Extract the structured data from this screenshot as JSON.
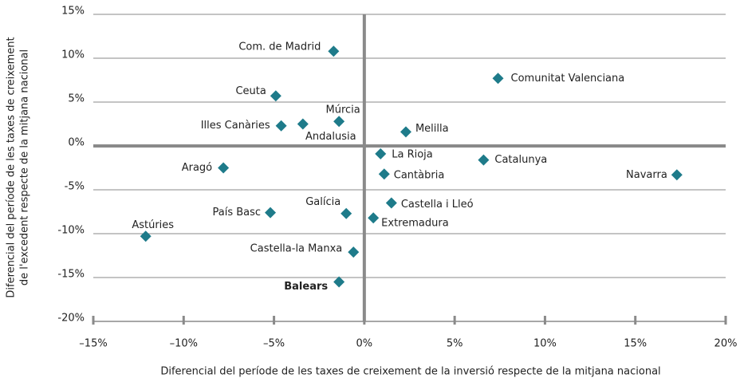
{
  "chart_data": {
    "type": "scatter",
    "xlabel": "Diferencial del període de les taxes de creixement de la inversió respecte de la mitjana nacional",
    "ylabel": [
      "Diferencial del període de les taxes de creixement",
      "de l'excedent respecte de la mitjana nacional"
    ],
    "xlim": [
      -15,
      20
    ],
    "ylim": [
      -20,
      15
    ],
    "xticks": [
      {
        "value": -15,
        "label": "–15%"
      },
      {
        "value": -10,
        "label": "–10%"
      },
      {
        "value": -5,
        "label": "–5%"
      },
      {
        "value": 0,
        "label": "0%"
      },
      {
        "value": 5,
        "label": "5%"
      },
      {
        "value": 10,
        "label": "10%"
      },
      {
        "value": 15,
        "label": "15%"
      },
      {
        "value": 20,
        "label": "20%"
      }
    ],
    "yticks": [
      {
        "value": 15,
        "label": "15%"
      },
      {
        "value": 10,
        "label": "10%"
      },
      {
        "value": 5,
        "label": "5%"
      },
      {
        "value": 0,
        "label": "0%"
      },
      {
        "value": -5,
        "label": "-5%"
      },
      {
        "value": -10,
        "label": "-10%"
      },
      {
        "value": -15,
        "label": "-15%"
      },
      {
        "value": -20,
        "label": "-20%"
      }
    ],
    "grid": true,
    "series": [
      {
        "color": "#1e7b8a",
        "labels": [
          "Com. de Madrid",
          "Comunitat Valenciana",
          "Ceuta",
          "Múrcia",
          "Illes Canàries",
          "Andalusia",
          "Melilla",
          "La Rioja",
          "Catalunya",
          "Aragó",
          "Cantàbria",
          "Navarra",
          "Castella i Lleó",
          "Galícia",
          "País Basc",
          "Extremadura",
          "Astúries",
          "Castella-la Manxa",
          "Balears"
        ],
        "x": [
          -1.7,
          7.4,
          -4.9,
          -1.4,
          -4.6,
          -3.4,
          2.3,
          0.9,
          6.6,
          -7.8,
          1.1,
          17.3,
          1.5,
          -1.0,
          -5.2,
          0.5,
          -12.1,
          -0.6,
          -1.4
        ],
        "values": [
          10.8,
          7.7,
          5.7,
          2.8,
          2.3,
          2.5,
          1.6,
          -0.9,
          -1.6,
          -2.5,
          -3.2,
          -3.3,
          -6.5,
          -7.7,
          -7.6,
          -8.2,
          -10.3,
          -12.1,
          -15.5
        ],
        "bold_points": [
          18
        ]
      }
    ]
  }
}
